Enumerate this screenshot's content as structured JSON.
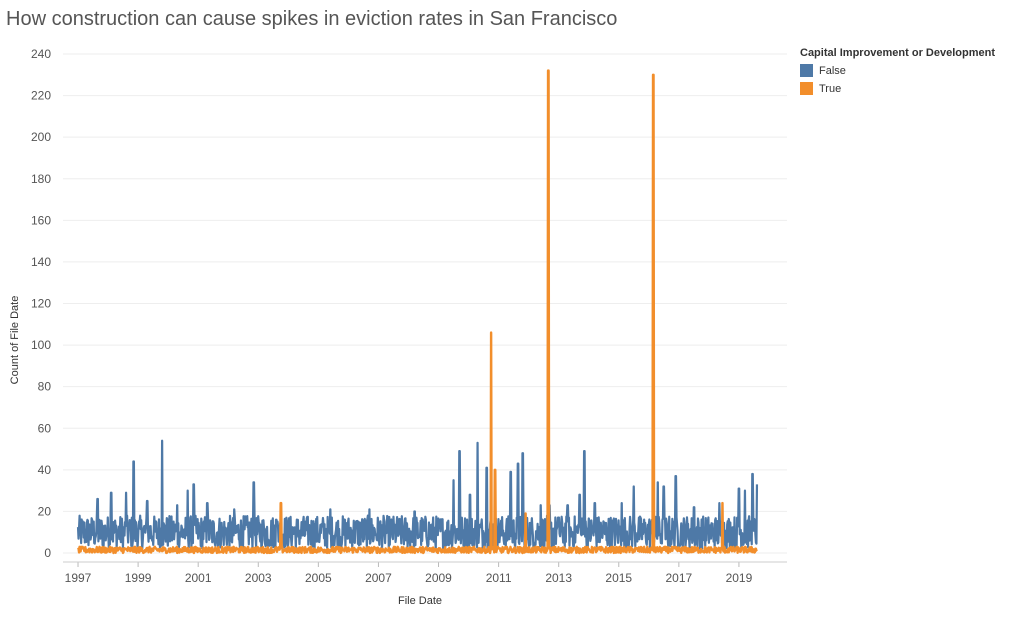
{
  "chart_data": {
    "type": "line",
    "title": "How construction can cause spikes in eviction rates in San Francisco",
    "xlabel": "File Date",
    "ylabel": "Count of File Date",
    "ylim": [
      -2,
      240
    ],
    "xlim": [
      1996.5,
      2020.6
    ],
    "grid": "horizontal",
    "legend_title": "Capital Improvement or Development",
    "legend_position": "top-right",
    "x_ticks": [
      "1997",
      "1999",
      "2001",
      "2003",
      "2005",
      "2007",
      "2009",
      "2011",
      "2013",
      "2015",
      "2017",
      "2019"
    ],
    "x_tick_values": [
      1997,
      1999,
      2001,
      2003,
      2005,
      2007,
      2009,
      2011,
      2013,
      2015,
      2017,
      2019
    ],
    "y_ticks": [
      0,
      20,
      40,
      60,
      80,
      100,
      120,
      140,
      160,
      180,
      200,
      220,
      240
    ],
    "x_range": [
      1997.0,
      2019.6
    ],
    "series": [
      {
        "name": "False",
        "color": "#4e79a7",
        "baseline_range": [
          2,
          18
        ],
        "peaks": [
          {
            "x": 1997.65,
            "y": 26
          },
          {
            "x": 1998.1,
            "y": 29
          },
          {
            "x": 1998.6,
            "y": 29
          },
          {
            "x": 1998.85,
            "y": 44
          },
          {
            "x": 1999.3,
            "y": 25
          },
          {
            "x": 1999.8,
            "y": 54
          },
          {
            "x": 2000.3,
            "y": 23
          },
          {
            "x": 2000.65,
            "y": 30
          },
          {
            "x": 2000.85,
            "y": 33
          },
          {
            "x": 2001.3,
            "y": 24
          },
          {
            "x": 2002.2,
            "y": 21
          },
          {
            "x": 2002.85,
            "y": 34
          },
          {
            "x": 2003.6,
            "y": 16
          },
          {
            "x": 2005.4,
            "y": 21
          },
          {
            "x": 2006.7,
            "y": 21
          },
          {
            "x": 2008.2,
            "y": 20
          },
          {
            "x": 2009.5,
            "y": 35
          },
          {
            "x": 2009.7,
            "y": 49
          },
          {
            "x": 2010.05,
            "y": 28
          },
          {
            "x": 2010.3,
            "y": 53
          },
          {
            "x": 2010.6,
            "y": 41
          },
          {
            "x": 2011.4,
            "y": 39
          },
          {
            "x": 2011.65,
            "y": 43
          },
          {
            "x": 2011.8,
            "y": 48
          },
          {
            "x": 2012.4,
            "y": 23
          },
          {
            "x": 2012.7,
            "y": 23
          },
          {
            "x": 2013.0,
            "y": 17
          },
          {
            "x": 2013.3,
            "y": 23
          },
          {
            "x": 2013.7,
            "y": 28
          },
          {
            "x": 2013.85,
            "y": 49
          },
          {
            "x": 2014.2,
            "y": 24
          },
          {
            "x": 2015.1,
            "y": 24
          },
          {
            "x": 2015.5,
            "y": 32
          },
          {
            "x": 2016.3,
            "y": 34
          },
          {
            "x": 2016.5,
            "y": 32
          },
          {
            "x": 2016.9,
            "y": 37
          },
          {
            "x": 2017.5,
            "y": 22
          },
          {
            "x": 2018.35,
            "y": 24
          },
          {
            "x": 2019.0,
            "y": 31
          },
          {
            "x": 2019.2,
            "y": 30
          },
          {
            "x": 2019.45,
            "y": 38
          },
          {
            "x": 2019.6,
            "y": 33
          }
        ]
      },
      {
        "name": "True",
        "color": "#f28e2b",
        "baseline_range": [
          0,
          3
        ],
        "peaks": [
          {
            "x": 2003.75,
            "y": 24
          },
          {
            "x": 2010.75,
            "y": 106
          },
          {
            "x": 2010.88,
            "y": 40
          },
          {
            "x": 2011.9,
            "y": 19
          },
          {
            "x": 2012.65,
            "y": 232
          },
          {
            "x": 2016.15,
            "y": 230
          },
          {
            "x": 2018.45,
            "y": 24
          }
        ]
      }
    ]
  }
}
